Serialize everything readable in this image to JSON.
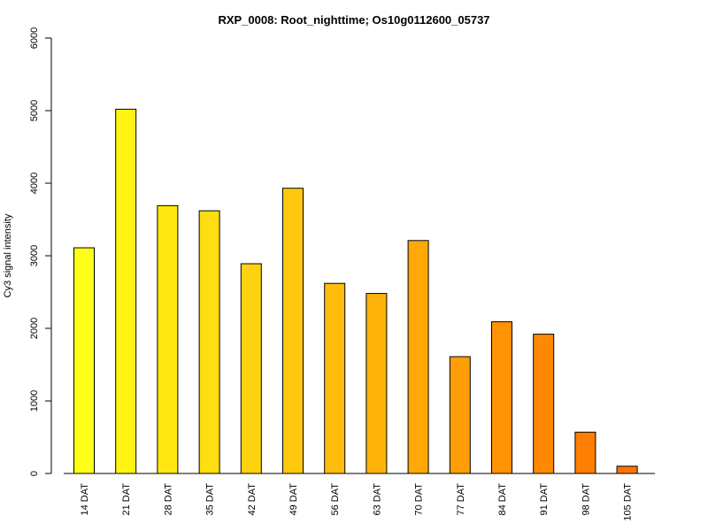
{
  "chart_data": {
    "type": "bar",
    "title": "RXP_0008: Root_nighttime; Os10g0112600_05737",
    "xlabel": "",
    "ylabel": "Cy3 signal intensity",
    "ylim": [
      0,
      6000
    ],
    "yticks": [
      0,
      1000,
      2000,
      3000,
      4000,
      5000,
      6000
    ],
    "grid": false,
    "categories": [
      "14 DAT",
      "21 DAT",
      "28 DAT",
      "35 DAT",
      "42 DAT",
      "49 DAT",
      "56 DAT",
      "63 DAT",
      "70 DAT",
      "77 DAT",
      "84 DAT",
      "91 DAT",
      "98 DAT",
      "105 DAT"
    ],
    "values": [
      3110,
      5020,
      3690,
      3620,
      2890,
      3930,
      2620,
      2480,
      3210,
      1610,
      2090,
      1920,
      570,
      100
    ],
    "colors": [
      "#ffff17",
      "#fff314",
      "#ffe812",
      "#ffdd10",
      "#ffd20f",
      "#ffc80d",
      "#ffbd0b",
      "#ffb309",
      "#ffa808",
      "#ff9e06",
      "#ff9305",
      "#ff8904",
      "#ff7f02",
      "#ff7401"
    ]
  }
}
